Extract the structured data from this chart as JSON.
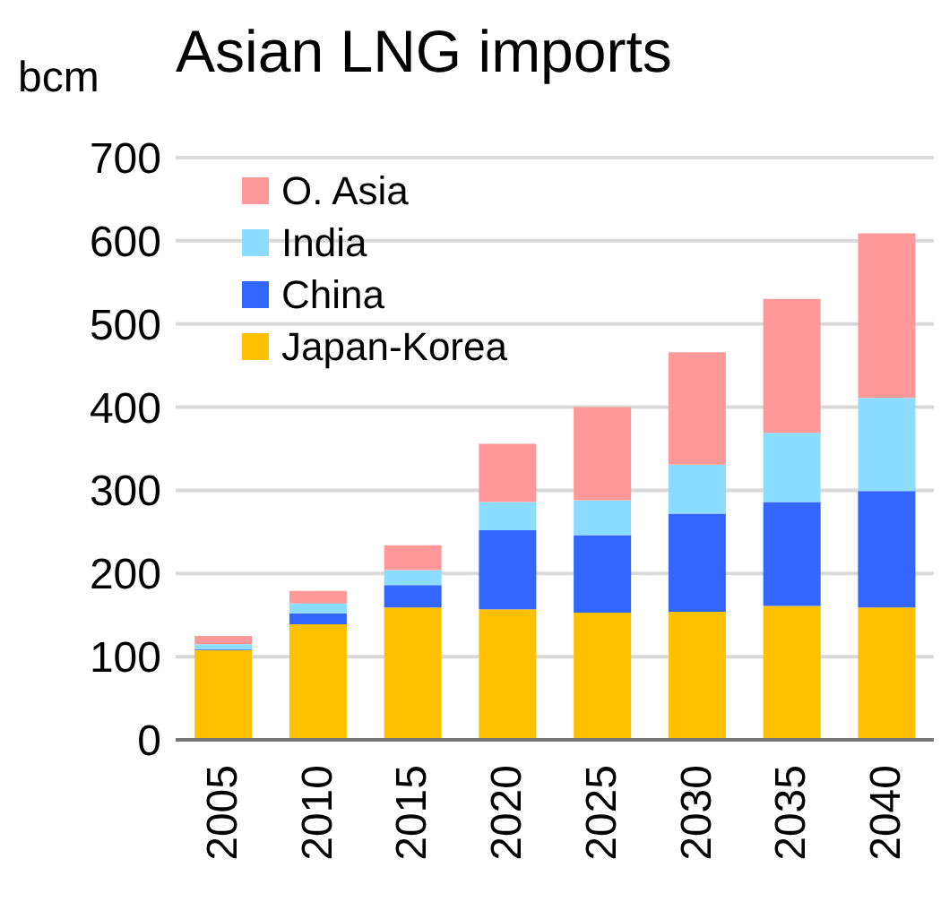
{
  "chart_data": {
    "type": "bar",
    "title": "Asian LNG imports",
    "ylabel": "bcm",
    "stacked": true,
    "categories": [
      "2005",
      "2010",
      "2015",
      "2020",
      "2025",
      "2030",
      "2035",
      "2040"
    ],
    "series": [
      {
        "name": "Japan-Korea",
        "color": "#ffc000",
        "values": [
          108,
          139,
          159,
          157,
          153,
          154,
          161,
          159
        ]
      },
      {
        "name": "China",
        "color": "#3366ff",
        "values": [
          1,
          13,
          27,
          95,
          93,
          118,
          125,
          140
        ]
      },
      {
        "name": "India",
        "color": "#8cdcff",
        "values": [
          6,
          12,
          18,
          34,
          42,
          59,
          83,
          112
        ]
      },
      {
        "name": "O. Asia",
        "color": "#ff9999",
        "values": [
          10,
          15,
          30,
          70,
          112,
          135,
          161,
          198
        ]
      }
    ],
    "ylim": [
      0,
      700
    ],
    "yticks": [
      0,
      100,
      200,
      300,
      400,
      500,
      600,
      700
    ],
    "grid": "y",
    "legend": "top left"
  }
}
